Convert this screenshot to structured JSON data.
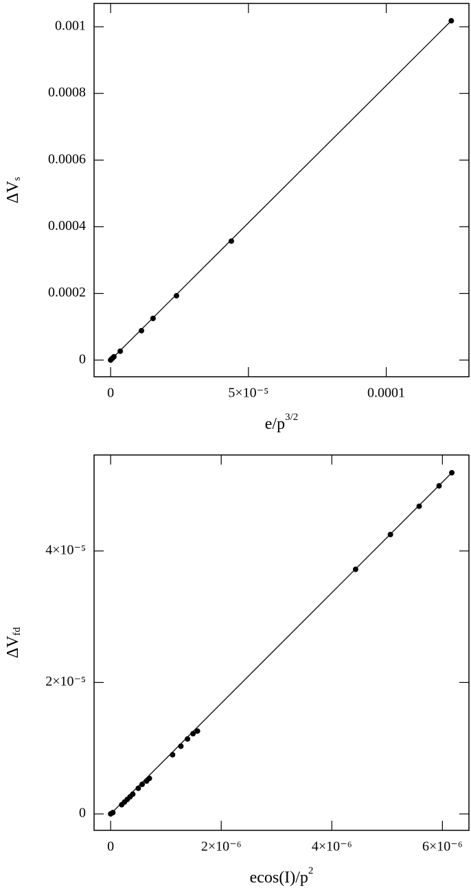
{
  "chart_data": [
    {
      "type": "scatter",
      "xlabel": {
        "text": "e/p",
        "sup": "3/2"
      },
      "ylabel": {
        "text": "ΔV",
        "sub": "s"
      },
      "xlim": [
        -6e-06,
        0.00013
      ],
      "ylim": [
        -5e-05,
        0.00107
      ],
      "xticks": [
        0,
        {
          "value": 5e-05,
          "label": "5×10⁻⁵"
        },
        0.0001
      ],
      "yticks": [
        0,
        0.0002,
        0.0004,
        0.0006,
        0.0008,
        0.001
      ],
      "color": "#000000",
      "points": {
        "x": [
          0,
          2e-07,
          7e-07,
          1.2e-06,
          3.5e-06,
          1.12e-05,
          1.54e-05,
          2.39e-05,
          4.38e-05,
          0.0001236
        ],
        "y": [
          0,
          2e-06,
          6e-06,
          1e-05,
          2.67e-05,
          8.83e-05,
          0.000125,
          0.000193,
          0.000357,
          0.001018
        ]
      },
      "fit": {
        "x": [
          0,
          0.0001236
        ],
        "y": [
          0,
          0.001018
        ]
      }
    },
    {
      "type": "scatter",
      "xlabel": {
        "text": "ecos(I)/p",
        "sup": "2"
      },
      "ylabel": {
        "text": "ΔV",
        "sub": "fd"
      },
      "xlim": [
        -3e-07,
        6.48e-06
      ],
      "ylim": [
        -2.5e-06,
        5.46e-05
      ],
      "xticks": [
        0,
        {
          "value": 2e-06,
          "label": "2×10⁻⁶"
        },
        {
          "value": 4e-06,
          "label": "4×10⁻⁶"
        },
        {
          "value": 6e-06,
          "label": "6×10⁻⁶"
        }
      ],
      "yticks": [
        0,
        {
          "value": 2e-05,
          "label": "2×10⁻⁵"
        },
        {
          "value": 4e-05,
          "label": "4×10⁻⁵"
        }
      ],
      "color": "#000000",
      "points": {
        "x": [
          0,
          4e-08,
          2e-07,
          2.5e-07,
          3e-07,
          3.5e-07,
          4e-07,
          5e-07,
          5.7e-07,
          6.5e-07,
          7e-07,
          1.12e-06,
          1.27e-06,
          1.39e-06,
          1.49e-06,
          1.57e-06,
          4.43e-06,
          5.06e-06,
          5.58e-06,
          5.94e-06,
          6.17e-06
        ],
        "y": [
          0,
          2e-07,
          1.4e-06,
          1.8e-06,
          2.2e-06,
          2.6e-06,
          3e-06,
          3.9e-06,
          4.5e-06,
          5e-06,
          5.4e-06,
          9e-06,
          1.03e-05,
          1.14e-05,
          1.22e-05,
          1.26e-05,
          3.72e-05,
          4.25e-05,
          4.68e-05,
          4.99e-05,
          5.19e-05
        ]
      },
      "fit": {
        "x": [
          0,
          6.17e-06
        ],
        "y": [
          0,
          5.19e-05
        ]
      }
    }
  ]
}
